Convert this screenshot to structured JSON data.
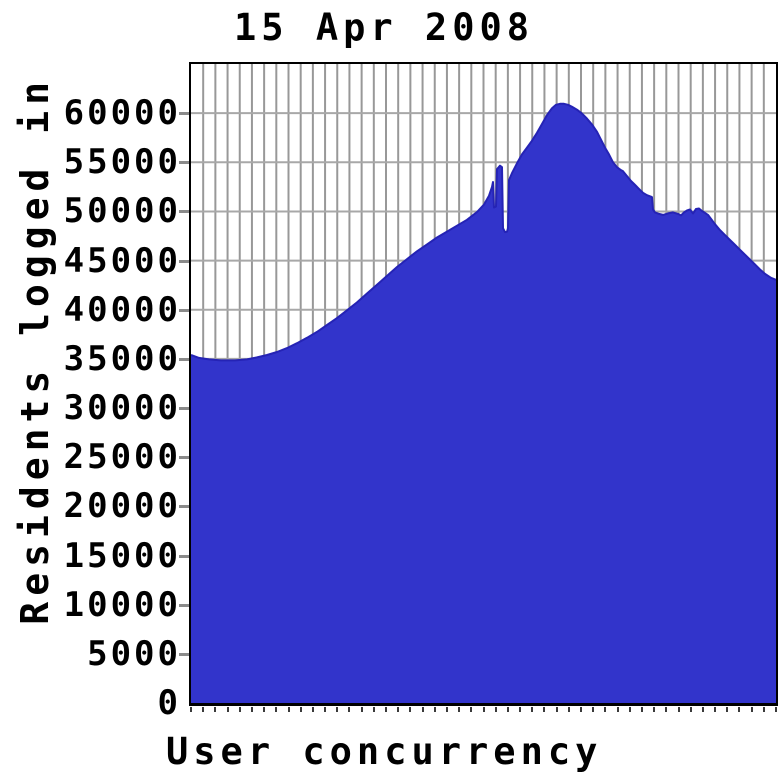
{
  "title": "15 Apr 2008",
  "x_label": "User concurrency",
  "y_label": "Residents logged in",
  "colors": {
    "area_fill": "#3234cb",
    "area_outline": "#2523b5",
    "grid_vertical": "#989898",
    "grid_horizontal": "#a8a8a8",
    "axis": "#000000",
    "background": "#ffffff",
    "text": "#000000"
  },
  "y_axis": {
    "min": 0,
    "max": 65000,
    "tick_step": 5000,
    "tick_labels": [
      "0",
      "5000",
      "10000",
      "15000",
      "20000",
      "25000",
      "30000",
      "35000",
      "40000",
      "45000",
      "50000",
      "55000",
      "60000"
    ]
  },
  "x_axis": {
    "minor_tick_count": 48,
    "tick_labels_visible": false
  },
  "chart_data": {
    "type": "area",
    "title": "15 Apr 2008",
    "xlabel": "User concurrency",
    "ylabel": "Residents logged in",
    "ylim": [
      0,
      65000
    ],
    "grid": true,
    "x_unit": "plot-x (0-585 across the shown period)",
    "series": [
      {
        "name": "Residents logged in",
        "points": [
          [
            0,
            35400
          ],
          [
            8,
            35100
          ],
          [
            18,
            34950
          ],
          [
            30,
            34850
          ],
          [
            44,
            34850
          ],
          [
            56,
            34950
          ],
          [
            66,
            35150
          ],
          [
            76,
            35400
          ],
          [
            86,
            35700
          ],
          [
            96,
            36100
          ],
          [
            106,
            36600
          ],
          [
            116,
            37150
          ],
          [
            126,
            37750
          ],
          [
            136,
            38450
          ],
          [
            146,
            39150
          ],
          [
            156,
            39950
          ],
          [
            166,
            40750
          ],
          [
            176,
            41650
          ],
          [
            186,
            42550
          ],
          [
            196,
            43450
          ],
          [
            206,
            44350
          ],
          [
            216,
            45150
          ],
          [
            226,
            45950
          ],
          [
            236,
            46650
          ],
          [
            246,
            47350
          ],
          [
            256,
            47950
          ],
          [
            266,
            48550
          ],
          [
            276,
            49150
          ],
          [
            286,
            49950
          ],
          [
            293,
            50700
          ],
          [
            298,
            51600
          ],
          [
            301,
            52500
          ],
          [
            302,
            53000
          ],
          [
            303,
            50400
          ],
          [
            305,
            50500
          ],
          [
            306,
            54300
          ],
          [
            309,
            54650
          ],
          [
            311,
            54500
          ],
          [
            312,
            48300
          ],
          [
            314,
            47900
          ],
          [
            316,
            47950
          ],
          [
            317,
            48300
          ],
          [
            318,
            53200
          ],
          [
            321,
            53900
          ],
          [
            326,
            54900
          ],
          [
            331,
            55800
          ],
          [
            336,
            56500
          ],
          [
            341,
            57200
          ],
          [
            346,
            58000
          ],
          [
            351,
            58900
          ],
          [
            356,
            59800
          ],
          [
            361,
            60500
          ],
          [
            365,
            60850
          ],
          [
            369,
            60950
          ],
          [
            373,
            60950
          ],
          [
            377,
            60850
          ],
          [
            381,
            60650
          ],
          [
            386,
            60350
          ],
          [
            391,
            59950
          ],
          [
            396,
            59450
          ],
          [
            401,
            58850
          ],
          [
            406,
            58100
          ],
          [
            410,
            57300
          ],
          [
            414,
            56500
          ],
          [
            418,
            55800
          ],
          [
            422,
            55000
          ],
          [
            426,
            54500
          ],
          [
            430,
            54200
          ],
          [
            432,
            54100
          ],
          [
            436,
            53600
          ],
          [
            440,
            53100
          ],
          [
            444,
            52700
          ],
          [
            448,
            52300
          ],
          [
            452,
            51900
          ],
          [
            456,
            51650
          ],
          [
            460,
            51500
          ],
          [
            461,
            51450
          ],
          [
            462,
            50200
          ],
          [
            464,
            49900
          ],
          [
            468,
            49750
          ],
          [
            472,
            49650
          ],
          [
            477,
            49800
          ],
          [
            482,
            49900
          ],
          [
            487,
            49750
          ],
          [
            490,
            49600
          ],
          [
            493,
            49900
          ],
          [
            496,
            50100
          ],
          [
            499,
            50200
          ],
          [
            502,
            49800
          ],
          [
            505,
            50250
          ],
          [
            508,
            50300
          ],
          [
            511,
            50050
          ],
          [
            514,
            49850
          ],
          [
            517,
            49650
          ],
          [
            520,
            49250
          ],
          [
            524,
            48700
          ],
          [
            529,
            48100
          ],
          [
            534,
            47600
          ],
          [
            539,
            47100
          ],
          [
            544,
            46600
          ],
          [
            549,
            46100
          ],
          [
            554,
            45600
          ],
          [
            559,
            45100
          ],
          [
            564,
            44600
          ],
          [
            569,
            44100
          ],
          [
            574,
            43650
          ],
          [
            580,
            43250
          ],
          [
            585,
            43050
          ]
        ]
      }
    ]
  }
}
